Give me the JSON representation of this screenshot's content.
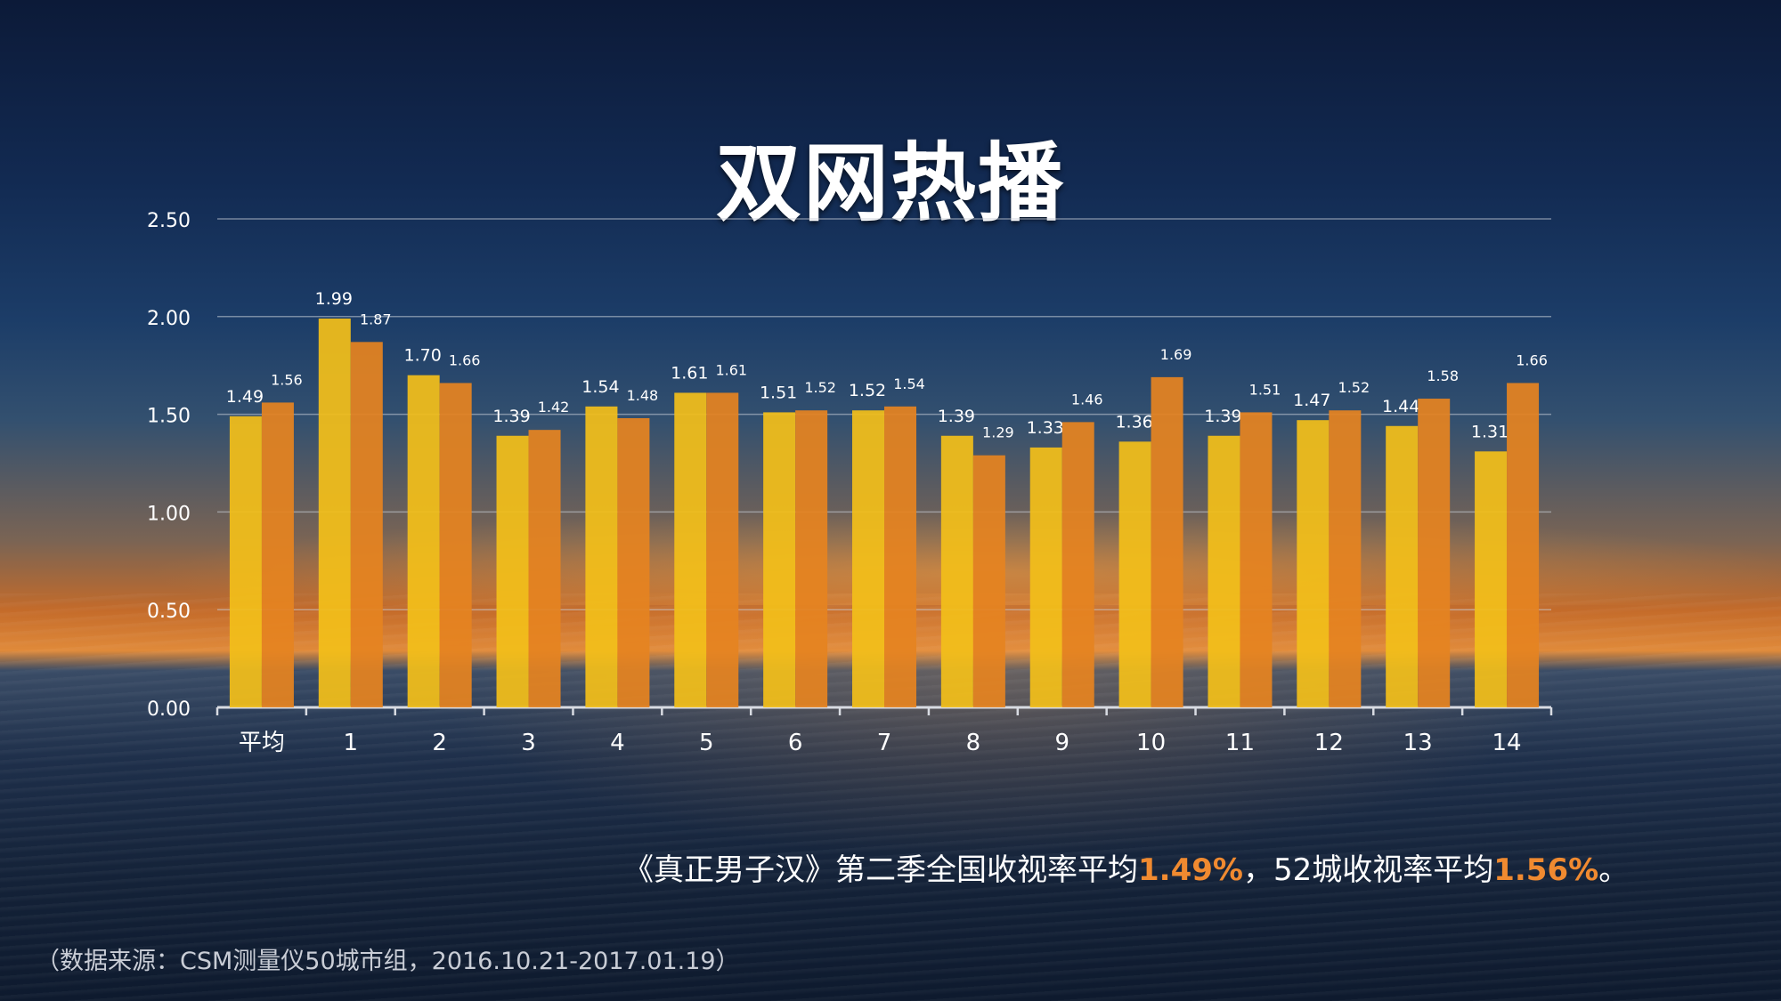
{
  "title": "双网热播",
  "summary": {
    "prefix": "《真正男子汉》第二季全国收视率平均",
    "value1": "1.49%",
    "middle": "，52城收视率平均",
    "value2": "1.56%",
    "suffix": "。"
  },
  "source_note": "（数据来源：CSM测量仪50城市组，2016.10.21-2017.01.19）",
  "colors": {
    "series_a": "#f2be1a",
    "series_b": "#e58320",
    "highlight": "#f08a30"
  },
  "chart_data": {
    "type": "bar",
    "categories": [
      "平均",
      "1",
      "2",
      "3",
      "4",
      "5",
      "6",
      "7",
      "8",
      "9",
      "10",
      "11",
      "12",
      "13",
      "14"
    ],
    "series": [
      {
        "values": [
          1.49,
          1.99,
          1.7,
          1.39,
          1.54,
          1.61,
          1.51,
          1.52,
          1.39,
          1.33,
          1.36,
          1.39,
          1.47,
          1.44,
          1.31
        ]
      },
      {
        "values": [
          1.56,
          1.87,
          1.66,
          1.42,
          1.48,
          1.61,
          1.52,
          1.54,
          1.29,
          1.46,
          1.69,
          1.51,
          1.52,
          1.58,
          1.66
        ]
      }
    ],
    "ylim": [
      0,
      2.5
    ],
    "yticks": [
      "0.00",
      "0.50",
      "1.00",
      "1.50",
      "2.00",
      "2.50"
    ],
    "grid": true
  }
}
